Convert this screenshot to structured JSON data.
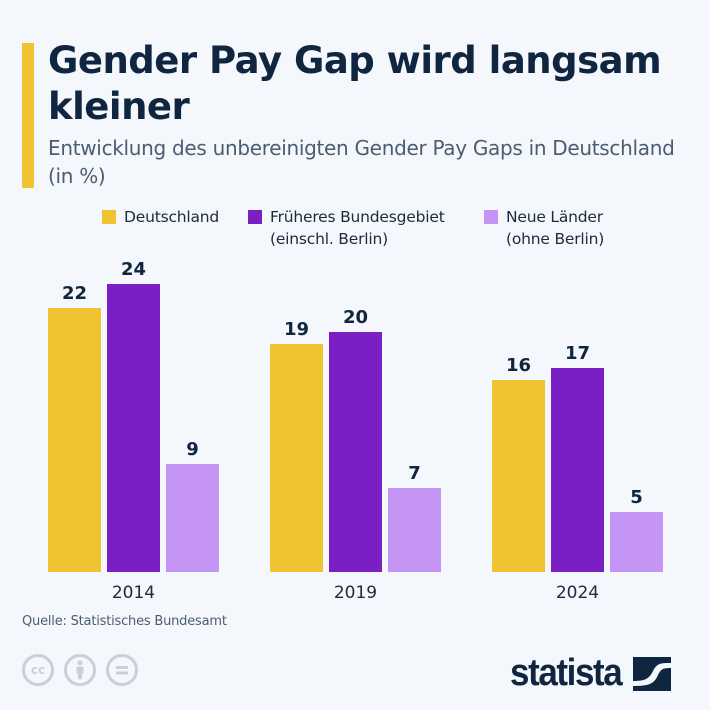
{
  "header": {
    "title": "Gender Pay Gap wird langsam kleiner",
    "subtitle": "Entwicklung des unbereinigten Gender Pay Gaps in Deutschland (in %)"
  },
  "chart_data": {
    "type": "bar",
    "categories": [
      "2014",
      "2019",
      "2024"
    ],
    "series": [
      {
        "name": "Deutschland",
        "color": "#f0c330",
        "values": [
          22,
          19,
          16
        ]
      },
      {
        "name": "Früheres Bundesgebiet\n(einschl. Berlin)",
        "color": "#7a1fc4",
        "values": [
          24,
          20,
          17
        ]
      },
      {
        "name": "Neue Länder\n(ohne Berlin)",
        "color": "#c595f5",
        "values": [
          9,
          7,
          5
        ]
      }
    ],
    "ylim": [
      0,
      24
    ],
    "grid": false,
    "legend": "top",
    "data_labels": true
  },
  "footer": {
    "source": "Quelle: Statistisches Bundesamt",
    "license_icons": [
      "cc-icon",
      "by-icon",
      "nd-icon"
    ],
    "logo": "statista"
  }
}
